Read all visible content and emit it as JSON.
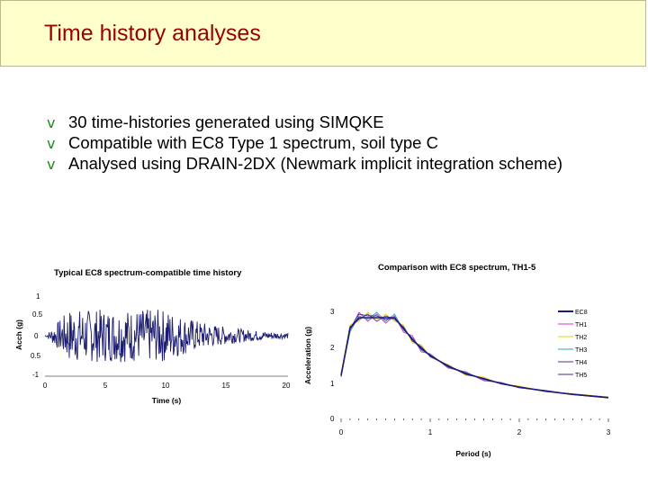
{
  "slide": {
    "title": "Time history analyses",
    "bullet_glyph": "v",
    "bullets": [
      "30 time-histories generated using SIMQKE",
      "Compatible with EC8 Type 1 spectrum, soil type C",
      "Analysed using DRAIN-2DX (Newmark implicit integration scheme)"
    ]
  },
  "chart_data": [
    {
      "type": "line",
      "title": "Typical EC8 spectrum-compatible time history",
      "xlabel": "Time (s)",
      "ylabel": "Acch (g)",
      "xlim": [
        0,
        20
      ],
      "ylim": [
        -1,
        1
      ],
      "x_ticks": [
        "0",
        "5",
        "10",
        "15",
        "20"
      ],
      "y_ticks": [
        "1",
        "0.5",
        "0",
        "0.5",
        "-1"
      ],
      "series": [
        {
          "color": "#1a1a6e",
          "duration_s": 20,
          "peak_abs_g": 0.7
        }
      ]
    },
    {
      "type": "line",
      "title": "Comparison with EC8 spectrum, TH1-5",
      "xlabel": "Period (s)",
      "ylabel": "Acceleration (g)",
      "xlim": [
        0,
        3
      ],
      "ylim": [
        0,
        3
      ],
      "x_ticks": [
        "0",
        "1",
        "2",
        "3"
      ],
      "y_ticks": [
        "3",
        "2",
        "1",
        "0"
      ],
      "legend_position": "right",
      "x": [
        0,
        0.1,
        0.2,
        0.3,
        0.4,
        0.5,
        0.6,
        0.7,
        0.8,
        0.9,
        1.0,
        1.2,
        1.4,
        1.6,
        1.8,
        2.0,
        2.3,
        2.6,
        3.0
      ],
      "series": [
        {
          "name": "EC8",
          "color": "#1a1a7a",
          "values": [
            1.2,
            2.5,
            2.8,
            2.8,
            2.8,
            2.8,
            2.8,
            2.5,
            2.2,
            1.95,
            1.75,
            1.45,
            1.25,
            1.1,
            0.97,
            0.87,
            0.76,
            0.67,
            0.58
          ]
        },
        {
          "name": "TH1",
          "color": "#cc33cc",
          "values": [
            1.15,
            2.45,
            2.95,
            2.7,
            2.9,
            2.65,
            2.85,
            2.4,
            2.3,
            1.85,
            1.8,
            1.4,
            1.3,
            1.05,
            1.0,
            0.85,
            0.78,
            0.66,
            0.57
          ]
        },
        {
          "name": "TH2",
          "color": "#e6d400",
          "values": [
            1.25,
            2.6,
            2.7,
            2.95,
            2.75,
            2.9,
            2.7,
            2.6,
            2.1,
            2.05,
            1.7,
            1.5,
            1.2,
            1.15,
            0.95,
            0.9,
            0.74,
            0.69,
            0.6
          ]
        },
        {
          "name": "TH3",
          "color": "#33aaaa",
          "values": [
            1.2,
            2.4,
            2.85,
            2.75,
            2.95,
            2.7,
            2.9,
            2.45,
            2.25,
            1.9,
            1.78,
            1.42,
            1.28,
            1.08,
            0.99,
            0.86,
            0.77,
            0.66,
            0.58
          ]
        },
        {
          "name": "TH4",
          "color": "#5a2a8a",
          "values": [
            1.18,
            2.55,
            2.75,
            2.9,
            2.7,
            2.85,
            2.75,
            2.55,
            2.15,
            2.0,
            1.72,
            1.48,
            1.22,
            1.12,
            0.96,
            0.88,
            0.75,
            0.68,
            0.59
          ]
        },
        {
          "name": "TH5",
          "color": "#333399",
          "values": [
            1.22,
            2.5,
            2.9,
            2.85,
            2.85,
            2.75,
            2.8,
            2.5,
            2.2,
            1.92,
            1.76,
            1.46,
            1.26,
            1.1,
            0.98,
            0.87,
            0.76,
            0.67,
            0.58
          ]
        }
      ]
    }
  ]
}
